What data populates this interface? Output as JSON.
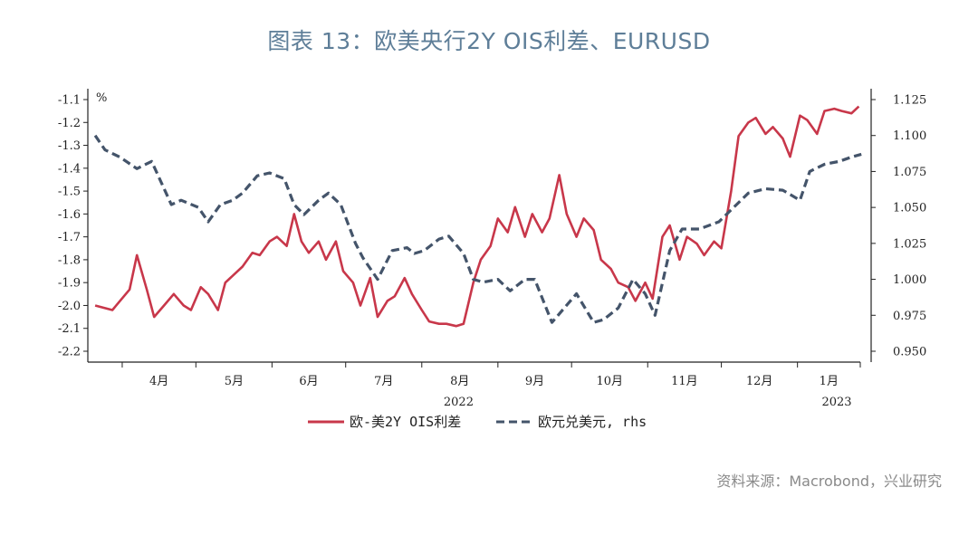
{
  "title": "图表 13：欧美央行2Y OIS利差、EURUSD",
  "source": "资料来源：Macrobond，兴业研究",
  "chart_data": {
    "type": "line",
    "left_axis_unit": "%",
    "left_axis": {
      "min": -2.2,
      "max": -1.1,
      "ticks": [
        "-1.1",
        "-1.2",
        "-1.3",
        "-1.4",
        "-1.5",
        "-1.6",
        "-1.7",
        "-1.8",
        "-1.9",
        "-2.0",
        "-2.1",
        "-2.2"
      ]
    },
    "right_axis": {
      "min": 0.95,
      "max": 1.125,
      "ticks": [
        "1.125",
        "1.100",
        "1.075",
        "1.050",
        "1.025",
        "1.000",
        "0.975",
        "0.950"
      ]
    },
    "x_months": [
      "4月",
      "5月",
      "6月",
      "7月",
      "8月",
      "9月",
      "10月",
      "11月",
      "12月",
      "1月"
    ],
    "x_years": [
      "2022",
      "2023"
    ],
    "grid": false,
    "legend_position": "bottom",
    "series": [
      {
        "name": "欧-美2Y OIS利差",
        "axis": "left",
        "color": "#c8374a",
        "x": [
          "2022-03-21",
          "2022-03-28",
          "2022-04-04",
          "2022-04-07",
          "2022-04-11",
          "2022-04-14",
          "2022-04-18",
          "2022-04-22",
          "2022-04-26",
          "2022-04-29",
          "2022-05-03",
          "2022-05-06",
          "2022-05-10",
          "2022-05-13",
          "2022-05-17",
          "2022-05-20",
          "2022-05-24",
          "2022-05-27",
          "2022-05-31",
          "2022-06-03",
          "2022-06-07",
          "2022-06-10",
          "2022-06-13",
          "2022-06-16",
          "2022-06-20",
          "2022-06-23",
          "2022-06-27",
          "2022-06-30",
          "2022-07-04",
          "2022-07-07",
          "2022-07-11",
          "2022-07-14",
          "2022-07-18",
          "2022-07-21",
          "2022-07-25",
          "2022-07-28",
          "2022-08-01",
          "2022-08-04",
          "2022-08-08",
          "2022-08-11",
          "2022-08-15",
          "2022-08-18",
          "2022-08-22",
          "2022-08-25",
          "2022-08-29",
          "2022-09-01",
          "2022-09-05",
          "2022-09-08",
          "2022-09-12",
          "2022-09-15",
          "2022-09-19",
          "2022-09-22",
          "2022-09-26",
          "2022-09-29",
          "2022-10-03",
          "2022-10-06",
          "2022-10-10",
          "2022-10-13",
          "2022-10-17",
          "2022-10-20",
          "2022-10-24",
          "2022-10-27",
          "2022-10-31",
          "2022-11-03",
          "2022-11-07",
          "2022-11-10",
          "2022-11-14",
          "2022-11-17",
          "2022-11-21",
          "2022-11-24",
          "2022-11-28",
          "2022-12-01",
          "2022-12-05",
          "2022-12-08",
          "2022-12-12",
          "2022-12-15",
          "2022-12-19",
          "2022-12-22",
          "2022-12-26",
          "2022-12-29",
          "2023-01-02",
          "2023-01-05",
          "2023-01-09",
          "2023-01-12",
          "2023-01-16",
          "2023-01-19",
          "2023-01-23",
          "2023-01-26"
        ],
        "values": [
          -2.0,
          -2.02,
          -1.93,
          -1.78,
          -1.93,
          -2.05,
          -2.0,
          -1.95,
          -2.0,
          -2.02,
          -1.92,
          -1.95,
          -2.02,
          -1.9,
          -1.86,
          -1.83,
          -1.77,
          -1.78,
          -1.72,
          -1.7,
          -1.74,
          -1.6,
          -1.72,
          -1.77,
          -1.72,
          -1.8,
          -1.72,
          -1.85,
          -1.9,
          -2.0,
          -1.88,
          -2.05,
          -1.98,
          -1.96,
          -1.88,
          -1.95,
          -2.02,
          -2.07,
          -2.08,
          -2.08,
          -2.09,
          -2.08,
          -1.9,
          -1.8,
          -1.74,
          -1.62,
          -1.68,
          -1.57,
          -1.7,
          -1.6,
          -1.68,
          -1.62,
          -1.43,
          -1.6,
          -1.7,
          -1.62,
          -1.67,
          -1.8,
          -1.84,
          -1.9,
          -1.92,
          -1.98,
          -1.9,
          -1.97,
          -1.7,
          -1.65,
          -1.8,
          -1.7,
          -1.73,
          -1.78,
          -1.72,
          -1.75,
          -1.5,
          -1.26,
          -1.2,
          -1.18,
          -1.25,
          -1.22,
          -1.27,
          -1.35,
          -1.17,
          -1.19,
          -1.25,
          -1.15,
          -1.14,
          -1.15,
          -1.16,
          -1.13
        ]
      },
      {
        "name": "欧元兑美元, rhs",
        "axis": "right",
        "color": "#44546a",
        "dashed": true,
        "x": [
          "2022-03-21",
          "2022-03-25",
          "2022-03-31",
          "2022-04-07",
          "2022-04-13",
          "2022-04-21",
          "2022-04-25",
          "2022-05-02",
          "2022-05-06",
          "2022-05-11",
          "2022-05-16",
          "2022-05-20",
          "2022-05-26",
          "2022-05-31",
          "2022-06-06",
          "2022-06-10",
          "2022-06-14",
          "2022-06-20",
          "2022-06-24",
          "2022-06-29",
          "2022-07-05",
          "2022-07-08",
          "2022-07-14",
          "2022-07-20",
          "2022-07-26",
          "2022-07-29",
          "2022-08-02",
          "2022-08-08",
          "2022-08-12",
          "2022-08-18",
          "2022-08-22",
          "2022-08-26",
          "2022-09-01",
          "2022-09-06",
          "2022-09-12",
          "2022-09-16",
          "2022-09-23",
          "2022-09-28",
          "2022-10-03",
          "2022-10-10",
          "2022-10-14",
          "2022-10-20",
          "2022-10-26",
          "2022-10-31",
          "2022-11-04",
          "2022-11-10",
          "2022-11-15",
          "2022-11-22",
          "2022-11-30",
          "2022-12-06",
          "2022-12-12",
          "2022-12-19",
          "2022-12-26",
          "2023-01-02",
          "2023-01-06",
          "2023-01-12",
          "2023-01-18",
          "2023-01-23",
          "2023-01-27"
        ],
        "values": [
          1.1,
          1.09,
          1.085,
          1.077,
          1.082,
          1.052,
          1.055,
          1.05,
          1.04,
          1.052,
          1.055,
          1.06,
          1.072,
          1.074,
          1.07,
          1.052,
          1.045,
          1.055,
          1.06,
          1.052,
          1.025,
          1.015,
          1.0,
          1.02,
          1.022,
          1.018,
          1.02,
          1.028,
          1.03,
          1.018,
          1.0,
          0.998,
          1.0,
          0.992,
          1.0,
          1.0,
          0.97,
          0.98,
          0.99,
          0.97,
          0.972,
          0.98,
          1.0,
          0.99,
          0.975,
          1.02,
          1.035,
          1.035,
          1.04,
          1.05,
          1.06,
          1.063,
          1.062,
          1.055,
          1.075,
          1.08,
          1.082,
          1.085,
          1.087
        ]
      }
    ]
  }
}
